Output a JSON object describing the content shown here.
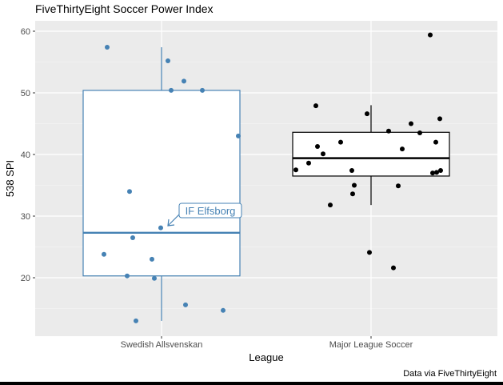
{
  "chart_data": {
    "type": "box",
    "title": "FiveThirtyEight Soccer Power Index",
    "xlabel": "League",
    "ylabel": "538 SPI",
    "caption": "Data via FiveThirtyEight",
    "ylim": [
      10.8,
      62.5
    ],
    "y_ticks": [
      20,
      30,
      40,
      50,
      60
    ],
    "categories": [
      "Swedish Allsvenskan",
      "Major League Soccer"
    ],
    "grid": true,
    "series": [
      {
        "name": "Swedish Allsvenskan",
        "color": "#4682B4",
        "box": {
          "lower_whisker": 13.0,
          "q1": 20.3,
          "median": 27.3,
          "q3": 50.4,
          "upper_whisker": 57.4
        },
        "points": [
          57.4,
          55.2,
          51.9,
          50.4,
          50.4,
          43.0,
          34.0,
          28.1,
          26.5,
          23.8,
          23.0,
          20.3,
          19.9,
          15.6,
          14.7,
          13.0
        ],
        "jitter_x": [
          134,
          210,
          230,
          214,
          253,
          298,
          162,
          201,
          166,
          130,
          190,
          159,
          193,
          232,
          279,
          170
        ]
      },
      {
        "name": "Major League Soccer",
        "color": "#000000",
        "box": {
          "lower_whisker": 31.8,
          "q1": 36.5,
          "median": 39.4,
          "q3": 43.6,
          "upper_whisker": 48.0
        },
        "points": [
          59.4,
          47.9,
          46.6,
          45.8,
          45.0,
          43.8,
          43.5,
          42.0,
          42.0,
          41.3,
          40.9,
          40.1,
          38.6,
          37.5,
          37.4,
          37.4,
          37.1,
          37.0,
          35.0,
          34.9,
          33.6,
          31.8,
          24.1,
          21.6
        ],
        "jitter_x": [
          538,
          395,
          459,
          550,
          514,
          486,
          525,
          426,
          545,
          397,
          503,
          404,
          386,
          370,
          440,
          551,
          546,
          541,
          443,
          498,
          441,
          413,
          462,
          492
        ]
      }
    ],
    "annotations": [
      {
        "text": "IF Elfsborg",
        "series": "Swedish Allsvenskan",
        "value": 28.1
      }
    ]
  }
}
